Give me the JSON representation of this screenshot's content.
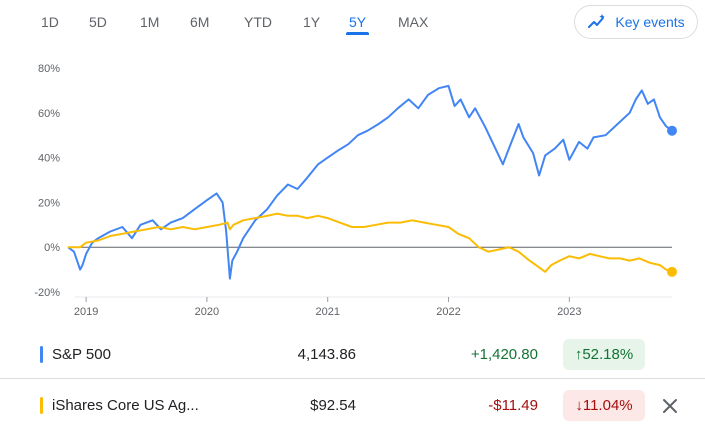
{
  "range_tabs": [
    "1D",
    "5D",
    "1M",
    "6M",
    "YTD",
    "1Y",
    "5Y",
    "MAX"
  ],
  "active_range": "5Y",
  "key_events_label": "Key events",
  "colors": {
    "accent": "#1a73e8",
    "series1": "#4285f4",
    "series2": "#fbbc04",
    "up": "#137333",
    "down": "#a50e0e"
  },
  "rows": [
    {
      "name": "S&P 500",
      "price": "4,143.86",
      "change": "+1,420.80",
      "percent": "52.18%",
      "direction": "up",
      "arrow": "↑"
    },
    {
      "name": "iShares Core US Ag...",
      "price": "$92.54",
      "change": "-$11.49",
      "percent": "11.04%",
      "direction": "down",
      "arrow": "↓"
    }
  ],
  "chart_data": {
    "type": "line",
    "y_ticks": [
      "80%",
      "60%",
      "40%",
      "20%",
      "0%",
      "-20%"
    ],
    "x_ticks": [
      "2019",
      "2020",
      "2021",
      "2022",
      "2023"
    ],
    "ylim": [
      -20,
      80
    ],
    "xlim": [
      2018.85,
      2023.85
    ],
    "series": [
      {
        "name": "S&P 500",
        "color": "#4285f4",
        "points": [
          [
            2018.85,
            0
          ],
          [
            2018.9,
            -2
          ],
          [
            2018.95,
            -10
          ],
          [
            2018.97,
            -8
          ],
          [
            2019.0,
            -3
          ],
          [
            2019.05,
            2
          ],
          [
            2019.1,
            4
          ],
          [
            2019.2,
            7
          ],
          [
            2019.3,
            9
          ],
          [
            2019.38,
            4
          ],
          [
            2019.45,
            10
          ],
          [
            2019.55,
            12
          ],
          [
            2019.62,
            8
          ],
          [
            2019.7,
            11
          ],
          [
            2019.8,
            13
          ],
          [
            2019.9,
            17
          ],
          [
            2020.0,
            21
          ],
          [
            2020.08,
            24
          ],
          [
            2020.13,
            20
          ],
          [
            2020.16,
            7
          ],
          [
            2020.19,
            -14
          ],
          [
            2020.21,
            -6
          ],
          [
            2020.25,
            -2
          ],
          [
            2020.3,
            4
          ],
          [
            2020.4,
            12
          ],
          [
            2020.5,
            17
          ],
          [
            2020.58,
            23
          ],
          [
            2020.67,
            28
          ],
          [
            2020.75,
            26
          ],
          [
            2020.83,
            31
          ],
          [
            2020.92,
            37
          ],
          [
            2021.0,
            40
          ],
          [
            2021.08,
            43
          ],
          [
            2021.17,
            46
          ],
          [
            2021.25,
            50
          ],
          [
            2021.33,
            52
          ],
          [
            2021.42,
            55
          ],
          [
            2021.5,
            58
          ],
          [
            2021.58,
            62
          ],
          [
            2021.67,
            66
          ],
          [
            2021.75,
            62
          ],
          [
            2021.83,
            68
          ],
          [
            2021.92,
            71
          ],
          [
            2022.0,
            72
          ],
          [
            2022.05,
            63
          ],
          [
            2022.1,
            66
          ],
          [
            2022.17,
            58
          ],
          [
            2022.22,
            62
          ],
          [
            2022.3,
            54
          ],
          [
            2022.38,
            45
          ],
          [
            2022.45,
            37
          ],
          [
            2022.5,
            44
          ],
          [
            2022.58,
            55
          ],
          [
            2022.62,
            49
          ],
          [
            2022.7,
            42
          ],
          [
            2022.75,
            32
          ],
          [
            2022.8,
            41
          ],
          [
            2022.88,
            44
          ],
          [
            2022.95,
            48
          ],
          [
            2023.0,
            39
          ],
          [
            2023.08,
            47
          ],
          [
            2023.15,
            44
          ],
          [
            2023.2,
            49
          ],
          [
            2023.3,
            50
          ],
          [
            2023.4,
            55
          ],
          [
            2023.5,
            60
          ],
          [
            2023.55,
            66
          ],
          [
            2023.6,
            70
          ],
          [
            2023.65,
            64
          ],
          [
            2023.7,
            66
          ],
          [
            2023.75,
            58
          ],
          [
            2023.8,
            54
          ],
          [
            2023.85,
            52
          ]
        ]
      },
      {
        "name": "iShares Core US Ag...",
        "color": "#fbbc04",
        "points": [
          [
            2018.85,
            0
          ],
          [
            2018.95,
            0
          ],
          [
            2019.0,
            2
          ],
          [
            2019.1,
            3
          ],
          [
            2019.2,
            5
          ],
          [
            2019.3,
            6
          ],
          [
            2019.4,
            7
          ],
          [
            2019.5,
            8
          ],
          [
            2019.6,
            9
          ],
          [
            2019.7,
            8
          ],
          [
            2019.8,
            9
          ],
          [
            2019.9,
            8
          ],
          [
            2020.0,
            9
          ],
          [
            2020.1,
            10
          ],
          [
            2020.17,
            11
          ],
          [
            2020.19,
            8
          ],
          [
            2020.22,
            10
          ],
          [
            2020.3,
            12
          ],
          [
            2020.4,
            13
          ],
          [
            2020.5,
            14
          ],
          [
            2020.58,
            15
          ],
          [
            2020.67,
            14
          ],
          [
            2020.75,
            14
          ],
          [
            2020.83,
            13
          ],
          [
            2020.92,
            14
          ],
          [
            2021.0,
            13
          ],
          [
            2021.1,
            11
          ],
          [
            2021.2,
            9
          ],
          [
            2021.3,
            9
          ],
          [
            2021.4,
            10
          ],
          [
            2021.5,
            11
          ],
          [
            2021.6,
            11
          ],
          [
            2021.7,
            12
          ],
          [
            2021.8,
            11
          ],
          [
            2021.9,
            10
          ],
          [
            2022.0,
            9
          ],
          [
            2022.08,
            6
          ],
          [
            2022.17,
            4
          ],
          [
            2022.25,
            0
          ],
          [
            2022.33,
            -2
          ],
          [
            2022.42,
            -1
          ],
          [
            2022.5,
            0
          ],
          [
            2022.58,
            -2
          ],
          [
            2022.67,
            -6
          ],
          [
            2022.75,
            -9
          ],
          [
            2022.8,
            -11
          ],
          [
            2022.85,
            -8
          ],
          [
            2022.92,
            -6
          ],
          [
            2023.0,
            -4
          ],
          [
            2023.08,
            -5
          ],
          [
            2023.17,
            -3
          ],
          [
            2023.25,
            -4
          ],
          [
            2023.33,
            -5
          ],
          [
            2023.42,
            -5
          ],
          [
            2023.5,
            -6
          ],
          [
            2023.58,
            -5
          ],
          [
            2023.67,
            -7
          ],
          [
            2023.75,
            -8
          ],
          [
            2023.8,
            -10
          ],
          [
            2023.85,
            -11
          ]
        ]
      }
    ]
  }
}
